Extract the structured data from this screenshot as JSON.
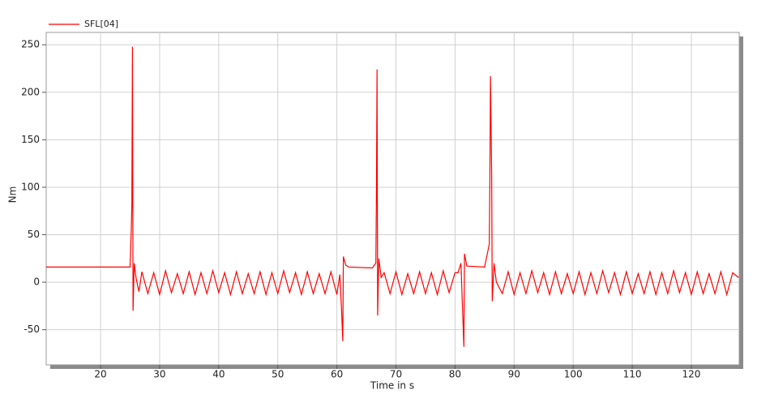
{
  "chart_data": {
    "type": "line",
    "xlabel": "Time in s",
    "ylabel": "Nm",
    "xlim": [
      10.8,
      128.1
    ],
    "ylim": [
      -87,
      263
    ],
    "xticks": [
      20,
      30,
      40,
      50,
      60,
      70,
      80,
      90,
      100,
      110,
      120
    ],
    "yticks": [
      -50,
      0,
      50,
      100,
      150,
      200,
      250
    ],
    "grid": true,
    "legend": "top-left",
    "x": [
      10.8,
      25,
      25.2,
      25.3,
      25.4,
      25.5,
      25.7,
      26,
      26.5,
      27,
      28,
      29,
      30,
      31,
      32,
      33,
      34,
      35,
      36,
      37,
      38,
      39,
      40,
      41,
      42,
      43,
      44,
      45,
      46,
      47,
      48,
      49,
      50,
      51,
      52,
      53,
      54,
      55,
      56,
      57,
      58,
      59,
      60,
      60.5,
      60.8,
      61,
      61.1,
      61.5,
      62,
      66,
      66.6,
      66.7,
      66.8,
      66.9,
      67.1,
      67.5,
      68,
      69,
      70,
      71,
      72,
      73,
      74,
      75,
      76,
      77,
      78,
      79,
      80,
      80.5,
      81,
      81.5,
      81.6,
      82,
      85,
      85.8,
      85.9,
      86,
      86.2,
      86.3,
      86.6,
      87,
      88,
      89,
      90,
      91,
      92,
      93,
      94,
      95,
      96,
      97,
      98,
      99,
      100,
      101,
      102,
      103,
      104,
      105,
      106,
      107,
      108,
      109,
      110,
      111,
      112,
      113,
      114,
      115,
      116,
      117,
      118,
      119,
      120,
      121,
      122,
      123,
      124,
      125,
      126,
      127,
      128
    ],
    "series": [
      {
        "name": "SFL[04]",
        "color": "#ff0000",
        "values": [
          16,
          16,
          55,
          83,
          248,
          -30,
          20,
          5,
          -10,
          11,
          -12,
          10,
          -13,
          12,
          -11,
          9,
          -12,
          11,
          -13,
          10,
          -12,
          12,
          -11,
          10,
          -13,
          11,
          -12,
          9,
          -12,
          11,
          -13,
          10,
          -12,
          12,
          -11,
          10,
          -13,
          11,
          -12,
          9,
          -12,
          11,
          -13,
          8,
          -30,
          -62,
          27,
          18,
          16,
          15,
          20,
          94,
          224,
          -35,
          25,
          5,
          10,
          -12,
          11,
          -13,
          9,
          -12,
          11,
          -12,
          10,
          -13,
          12,
          -11,
          10,
          10,
          20,
          -68,
          30,
          17,
          16,
          40,
          110,
          217,
          114,
          -20,
          20,
          0,
          -12,
          11,
          -13,
          10,
          -12,
          12,
          -11,
          10,
          -13,
          11,
          -12,
          9,
          -12,
          11,
          -13,
          10,
          -12,
          12,
          -11,
          10,
          -13,
          11,
          -12,
          9,
          -12,
          11,
          -13,
          10,
          -12,
          12,
          -11,
          10,
          -13,
          11,
          -12,
          9,
          -12,
          11,
          -13,
          10,
          5
        ]
      }
    ]
  }
}
